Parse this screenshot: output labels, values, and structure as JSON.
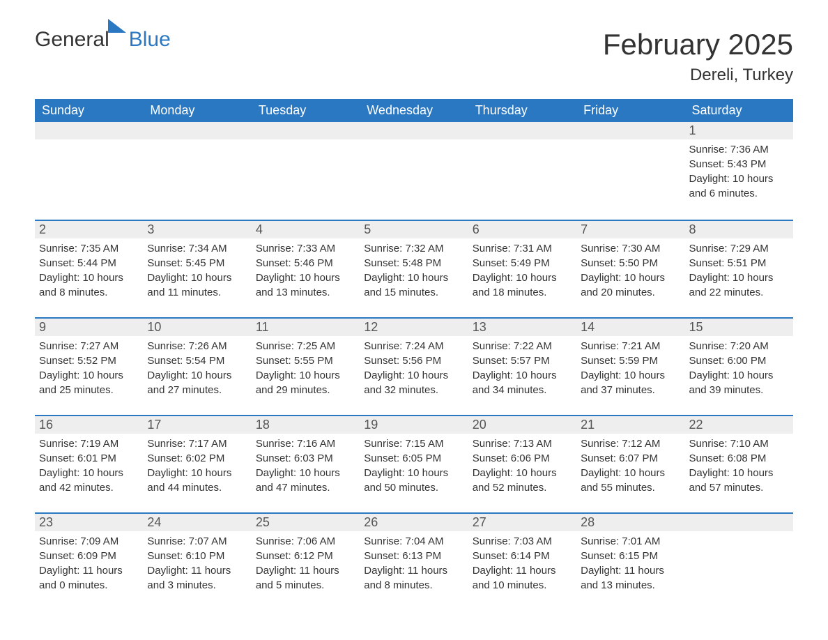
{
  "brand": {
    "main": "General",
    "sub": "Blue"
  },
  "title": "February 2025",
  "location": "Dereli, Turkey",
  "colors": {
    "accent": "#2b78c2",
    "header_bg": "#2b78c2",
    "header_text": "#ffffff",
    "daynum_bg": "#eeeeee",
    "text": "#333333",
    "page_bg": "#ffffff"
  },
  "layout": {
    "columns": 7,
    "rows": 5,
    "first_day_column_index": 6,
    "daynum_fontsize": 18,
    "body_fontsize": 15,
    "header_fontsize": 18,
    "title_fontsize": 42,
    "location_fontsize": 24
  },
  "weekdays": [
    "Sunday",
    "Monday",
    "Tuesday",
    "Wednesday",
    "Thursday",
    "Friday",
    "Saturday"
  ],
  "days": [
    {
      "n": 1,
      "sunrise": "7:36 AM",
      "sunset": "5:43 PM",
      "daylight": "10 hours and 6 minutes."
    },
    {
      "n": 2,
      "sunrise": "7:35 AM",
      "sunset": "5:44 PM",
      "daylight": "10 hours and 8 minutes."
    },
    {
      "n": 3,
      "sunrise": "7:34 AM",
      "sunset": "5:45 PM",
      "daylight": "10 hours and 11 minutes."
    },
    {
      "n": 4,
      "sunrise": "7:33 AM",
      "sunset": "5:46 PM",
      "daylight": "10 hours and 13 minutes."
    },
    {
      "n": 5,
      "sunrise": "7:32 AM",
      "sunset": "5:48 PM",
      "daylight": "10 hours and 15 minutes."
    },
    {
      "n": 6,
      "sunrise": "7:31 AM",
      "sunset": "5:49 PM",
      "daylight": "10 hours and 18 minutes."
    },
    {
      "n": 7,
      "sunrise": "7:30 AM",
      "sunset": "5:50 PM",
      "daylight": "10 hours and 20 minutes."
    },
    {
      "n": 8,
      "sunrise": "7:29 AM",
      "sunset": "5:51 PM",
      "daylight": "10 hours and 22 minutes."
    },
    {
      "n": 9,
      "sunrise": "7:27 AM",
      "sunset": "5:52 PM",
      "daylight": "10 hours and 25 minutes."
    },
    {
      "n": 10,
      "sunrise": "7:26 AM",
      "sunset": "5:54 PM",
      "daylight": "10 hours and 27 minutes."
    },
    {
      "n": 11,
      "sunrise": "7:25 AM",
      "sunset": "5:55 PM",
      "daylight": "10 hours and 29 minutes."
    },
    {
      "n": 12,
      "sunrise": "7:24 AM",
      "sunset": "5:56 PM",
      "daylight": "10 hours and 32 minutes."
    },
    {
      "n": 13,
      "sunrise": "7:22 AM",
      "sunset": "5:57 PM",
      "daylight": "10 hours and 34 minutes."
    },
    {
      "n": 14,
      "sunrise": "7:21 AM",
      "sunset": "5:59 PM",
      "daylight": "10 hours and 37 minutes."
    },
    {
      "n": 15,
      "sunrise": "7:20 AM",
      "sunset": "6:00 PM",
      "daylight": "10 hours and 39 minutes."
    },
    {
      "n": 16,
      "sunrise": "7:19 AM",
      "sunset": "6:01 PM",
      "daylight": "10 hours and 42 minutes."
    },
    {
      "n": 17,
      "sunrise": "7:17 AM",
      "sunset": "6:02 PM",
      "daylight": "10 hours and 44 minutes."
    },
    {
      "n": 18,
      "sunrise": "7:16 AM",
      "sunset": "6:03 PM",
      "daylight": "10 hours and 47 minutes."
    },
    {
      "n": 19,
      "sunrise": "7:15 AM",
      "sunset": "6:05 PM",
      "daylight": "10 hours and 50 minutes."
    },
    {
      "n": 20,
      "sunrise": "7:13 AM",
      "sunset": "6:06 PM",
      "daylight": "10 hours and 52 minutes."
    },
    {
      "n": 21,
      "sunrise": "7:12 AM",
      "sunset": "6:07 PM",
      "daylight": "10 hours and 55 minutes."
    },
    {
      "n": 22,
      "sunrise": "7:10 AM",
      "sunset": "6:08 PM",
      "daylight": "10 hours and 57 minutes."
    },
    {
      "n": 23,
      "sunrise": "7:09 AM",
      "sunset": "6:09 PM",
      "daylight": "11 hours and 0 minutes."
    },
    {
      "n": 24,
      "sunrise": "7:07 AM",
      "sunset": "6:10 PM",
      "daylight": "11 hours and 3 minutes."
    },
    {
      "n": 25,
      "sunrise": "7:06 AM",
      "sunset": "6:12 PM",
      "daylight": "11 hours and 5 minutes."
    },
    {
      "n": 26,
      "sunrise": "7:04 AM",
      "sunset": "6:13 PM",
      "daylight": "11 hours and 8 minutes."
    },
    {
      "n": 27,
      "sunrise": "7:03 AM",
      "sunset": "6:14 PM",
      "daylight": "11 hours and 10 minutes."
    },
    {
      "n": 28,
      "sunrise": "7:01 AM",
      "sunset": "6:15 PM",
      "daylight": "11 hours and 13 minutes."
    }
  ],
  "labels": {
    "sunrise_prefix": "Sunrise: ",
    "sunset_prefix": "Sunset: ",
    "daylight_prefix": "Daylight: "
  }
}
